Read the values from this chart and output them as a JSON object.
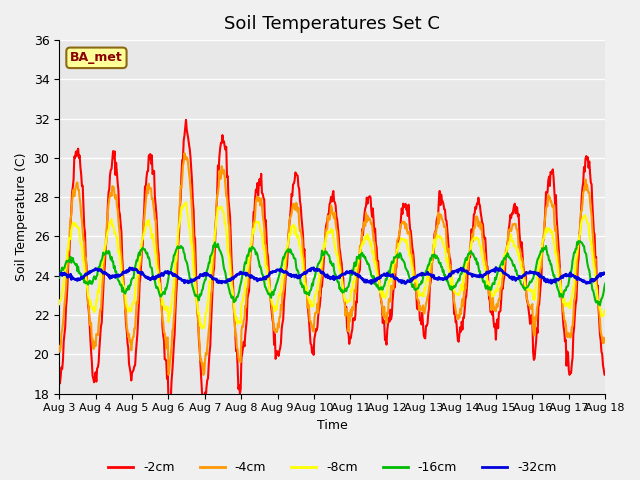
{
  "title": "Soil Temperatures Set C",
  "xlabel": "Time",
  "ylabel": "Soil Temperature (C)",
  "ylim": [
    18,
    36
  ],
  "yticks": [
    18,
    20,
    22,
    24,
    26,
    28,
    30,
    32,
    34,
    36
  ],
  "legend_label": "BA_met",
  "series_labels": [
    "-2cm",
    "-4cm",
    "-8cm",
    "-16cm",
    "-32cm"
  ],
  "series_colors": [
    "#ff0000",
    "#ff9900",
    "#ffff00",
    "#00bb00",
    "#0000dd"
  ],
  "line_widths": [
    1.5,
    1.5,
    1.5,
    1.5,
    2.0
  ],
  "x_tick_labels": [
    "Aug 3",
    "Aug 4",
    "Aug 5",
    "Aug 6",
    "Aug 7",
    "Aug 8",
    "Aug 9",
    "Aug 10",
    "Aug 11",
    "Aug 12",
    "Aug 13",
    "Aug 14",
    "Aug 15",
    "Aug 16",
    "Aug 17",
    "Aug 18"
  ],
  "background_color": "#e8e8e8",
  "fig_bg_color": "#f0f0f0",
  "grid_color": "#ffffff"
}
